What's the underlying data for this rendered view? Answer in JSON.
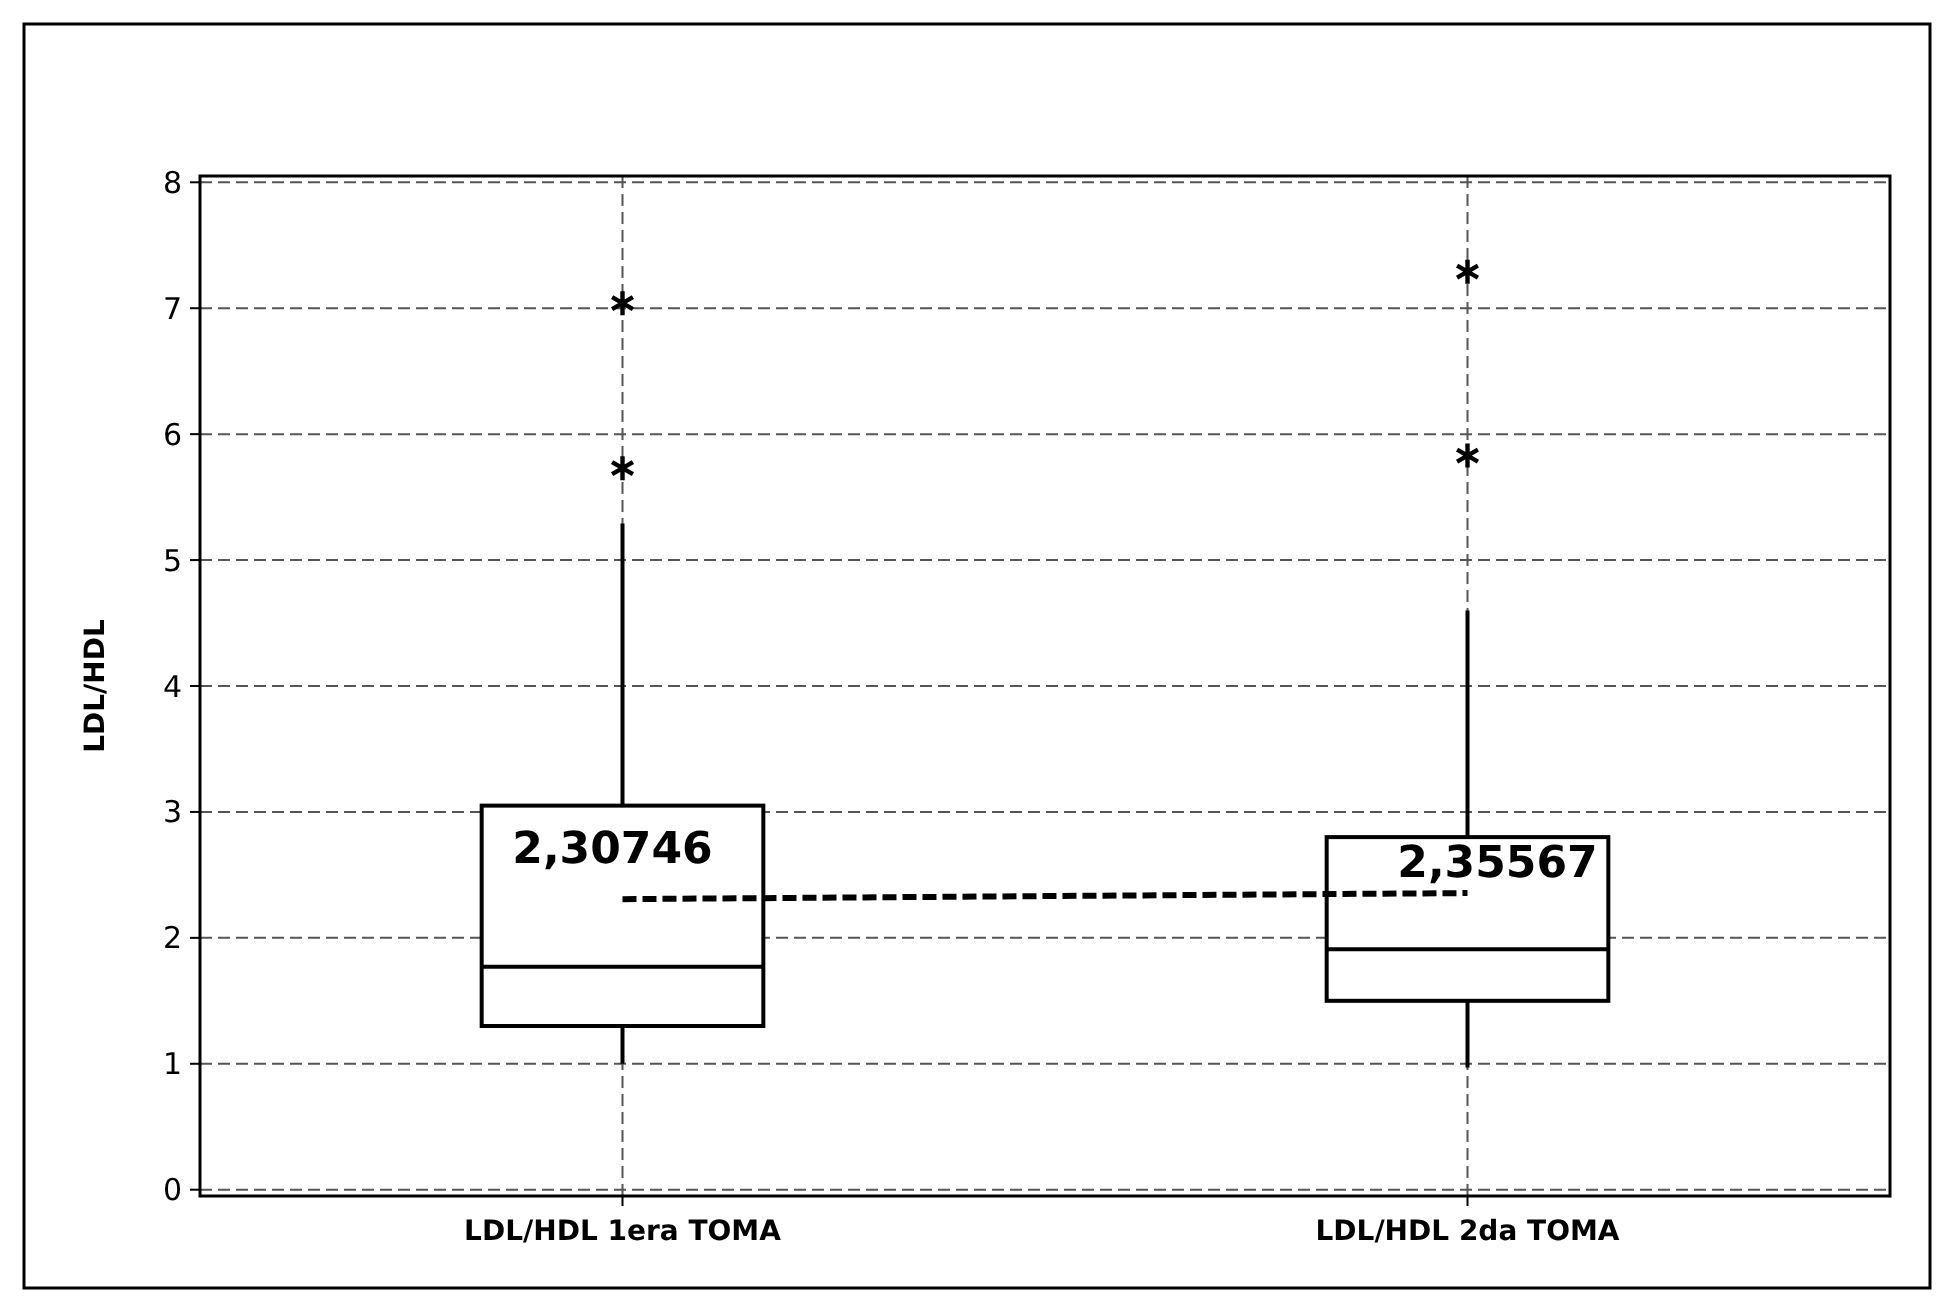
{
  "chart_data": {
    "type": "box",
    "ylabel": "LDL/HDL",
    "categories": [
      "LDL/HDL 1era TOMA",
      "LDL/HDL 2da TOMA"
    ],
    "boxes": [
      {
        "low": 1.0,
        "q1": 1.3,
        "median": 1.77,
        "q3": 3.05,
        "high": 5.29,
        "outliers": [
          5.73,
          7.04
        ]
      },
      {
        "low": 0.97,
        "q1": 1.5,
        "median": 1.91,
        "q3": 2.8,
        "high": 4.6,
        "outliers": [
          5.83,
          7.29
        ]
      }
    ],
    "series": [
      {
        "type": "line",
        "x": [
          "LDL/HDL 1era TOMA",
          "LDL/HDL 2da TOMA"
        ],
        "values": [
          2.30746,
          2.35567
        ],
        "value_labels": [
          "2,30746",
          "2,35567"
        ],
        "color": "#000000",
        "line_style": "dashed",
        "marker": "none"
      }
    ],
    "ylim": [
      -0.05,
      8.05
    ],
    "yticks": [
      0,
      1,
      2,
      3,
      4,
      5,
      6,
      7,
      8
    ],
    "grid": true
  }
}
